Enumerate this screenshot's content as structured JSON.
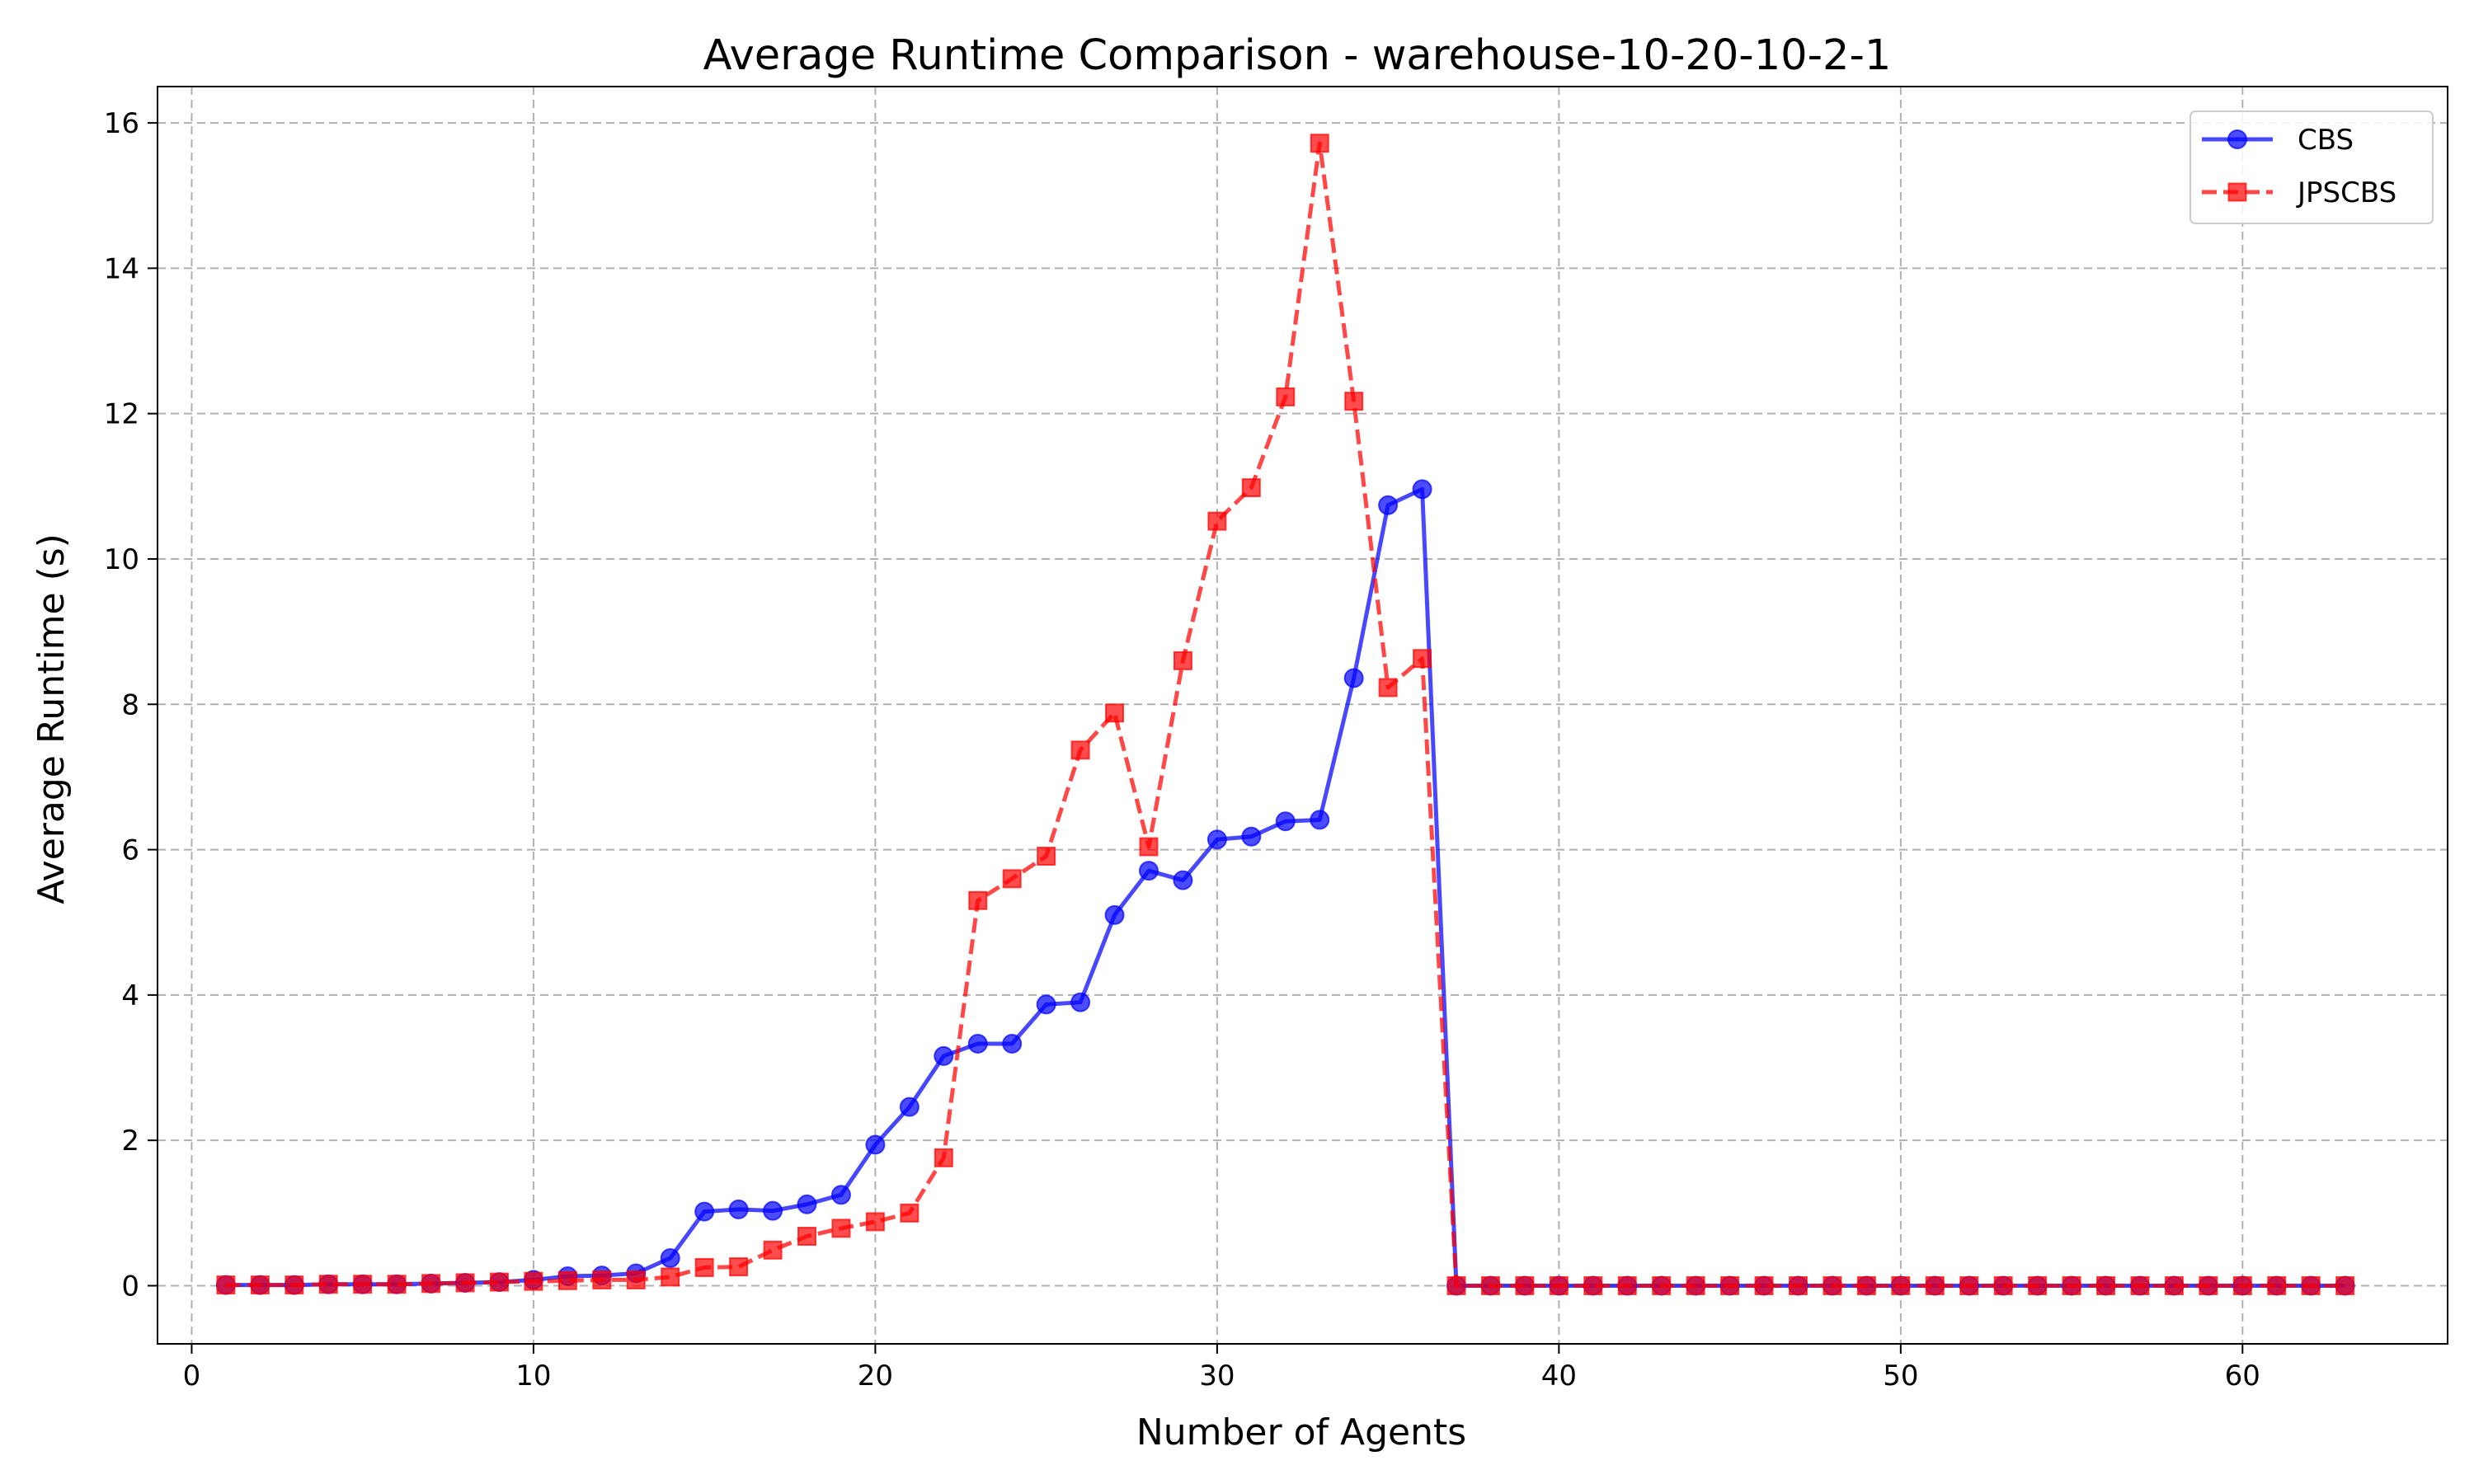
{
  "chart_data": {
    "type": "line",
    "title": "Average Runtime Comparison - warehouse-10-20-10-2-1",
    "xlabel": "Number of Agents",
    "ylabel": "Average Runtime (s)",
    "xlim": [
      -1,
      66
    ],
    "ylim": [
      -0.8,
      16.5
    ],
    "xticks": [
      0,
      10,
      20,
      30,
      40,
      50,
      60
    ],
    "yticks": [
      0,
      2,
      4,
      6,
      8,
      10,
      12,
      14,
      16
    ],
    "grid": true,
    "legend_position": "top-right",
    "x": [
      1,
      2,
      3,
      4,
      5,
      6,
      7,
      8,
      9,
      10,
      11,
      12,
      13,
      14,
      15,
      16,
      17,
      18,
      19,
      20,
      21,
      22,
      23,
      24,
      25,
      26,
      27,
      28,
      29,
      30,
      31,
      32,
      33,
      34,
      35,
      36,
      37,
      38,
      39,
      40,
      41,
      42,
      43,
      44,
      45,
      46,
      47,
      48,
      49,
      50,
      51,
      52,
      53,
      54,
      55,
      56,
      57,
      58,
      59,
      60,
      61,
      62,
      63
    ],
    "series": [
      {
        "name": "CBS",
        "color": "#0000ff",
        "line_style": "solid",
        "marker": "circle",
        "values": [
          0.01,
          0.01,
          0.01,
          0.02,
          0.02,
          0.02,
          0.03,
          0.04,
          0.05,
          0.08,
          0.13,
          0.14,
          0.17,
          0.38,
          1.02,
          1.05,
          1.03,
          1.12,
          1.25,
          1.94,
          2.46,
          3.16,
          3.33,
          3.33,
          3.87,
          3.9,
          5.1,
          5.71,
          5.58,
          6.14,
          6.18,
          6.39,
          6.41,
          8.36,
          10.74,
          10.96,
          0,
          0,
          0,
          0,
          0,
          0,
          0,
          0,
          0,
          0,
          0,
          0,
          0,
          0,
          0,
          0,
          0,
          0,
          0,
          0,
          0,
          0,
          0,
          0,
          0,
          0,
          0
        ]
      },
      {
        "name": "JPSCBS",
        "color": "#ff0000",
        "line_style": "dashed",
        "marker": "square",
        "values": [
          0.01,
          0.01,
          0.01,
          0.02,
          0.02,
          0.02,
          0.03,
          0.04,
          0.05,
          0.06,
          0.07,
          0.08,
          0.08,
          0.12,
          0.25,
          0.26,
          0.49,
          0.68,
          0.79,
          0.88,
          1.0,
          1.76,
          5.3,
          5.6,
          5.91,
          7.37,
          7.88,
          6.04,
          8.6,
          10.52,
          10.98,
          12.23,
          15.72,
          12.17,
          8.23,
          8.63,
          0,
          0,
          0,
          0,
          0,
          0,
          0,
          0,
          0,
          0,
          0,
          0,
          0,
          0,
          0,
          0,
          0,
          0,
          0,
          0,
          0,
          0,
          0,
          0,
          0,
          0,
          0
        ]
      }
    ]
  }
}
